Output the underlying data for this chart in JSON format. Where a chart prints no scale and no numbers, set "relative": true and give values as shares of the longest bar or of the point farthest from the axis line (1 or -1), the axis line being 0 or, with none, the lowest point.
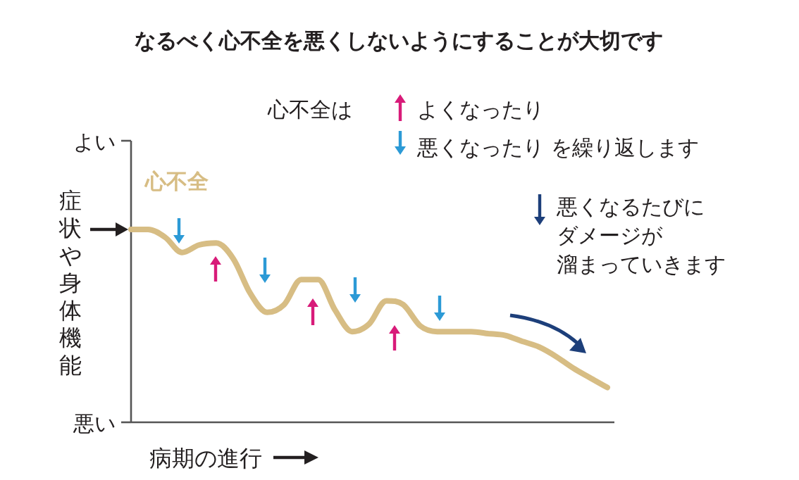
{
  "chart_data": {
    "type": "line",
    "relative": true,
    "title": "なるべく心不全を悪くしないようにすることが大切です",
    "ylabel": "症状や身体機能",
    "xlabel": "病期の進行",
    "annotations": [
      "よい",
      "悪い",
      "心不全は",
      "よくなったり",
      "悪くなったり を繰り返します",
      "悪くなるたびに",
      "ダメージが",
      "溜まっていきます"
    ],
    "categories": [
      null,
      null,
      null,
      null,
      null,
      null,
      null,
      null,
      null,
      null,
      null,
      null,
      null,
      null,
      null,
      null,
      null,
      null,
      null,
      null,
      null,
      null,
      null,
      null,
      null,
      null,
      null,
      null,
      null
    ],
    "series": [
      {
        "name": "心不全",
        "color": "#d7bd84",
        "values": [
          1,
          1,
          0.96,
          0.88,
          0.92,
          0.93,
          0.85,
          0.67,
          0.57,
          0.61,
          0.74,
          0.74,
          0.58,
          0.47,
          0.51,
          0.63,
          0.61,
          0.5,
          0.47,
          0.47,
          0.47,
          0.46,
          0.45,
          0.42,
          0.39,
          0.34,
          0.28,
          0.23,
          0.18
        ]
      }
    ]
  }
}
